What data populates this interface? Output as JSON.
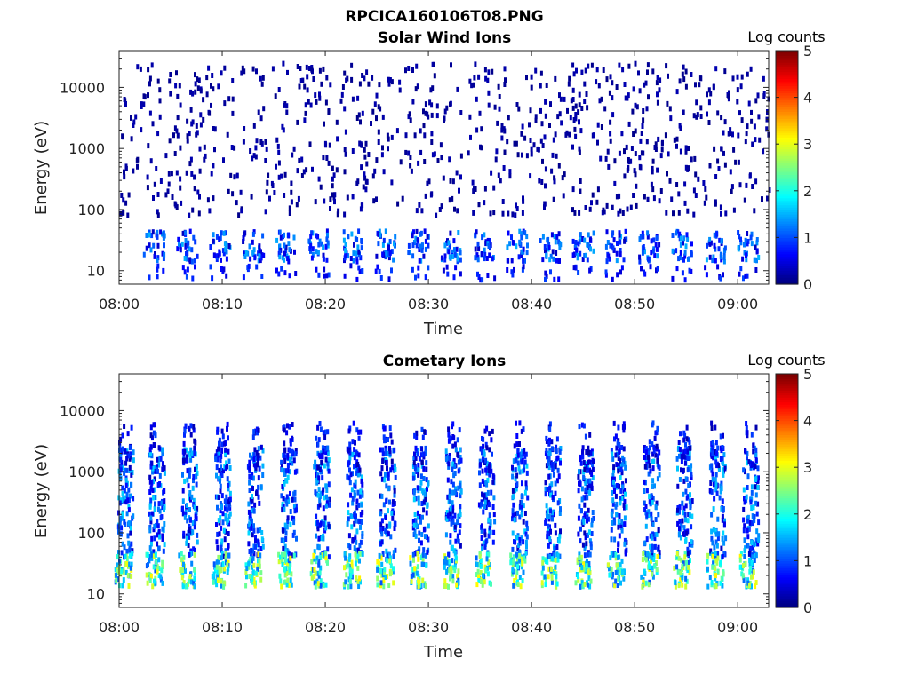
{
  "figure_title": "RPCICA160106T08.PNG",
  "chart_data": [
    {
      "type": "heatmap",
      "title": "Solar Wind Ions",
      "xlabel": "Time",
      "ylabel": "Energy (eV)",
      "x_ticks": [
        "08:00",
        "08:10",
        "08:20",
        "08:30",
        "08:40",
        "08:50",
        "09:00"
      ],
      "y_ticks": [
        "10",
        "100",
        "1000",
        "10000"
      ],
      "y_scale": "log",
      "ylim": [
        6,
        40000
      ],
      "colorbar": {
        "label": "Log counts",
        "range": [
          0,
          5
        ],
        "ticks": [
          "0",
          "1",
          "2",
          "3",
          "4",
          "5"
        ]
      },
      "pattern": "sparse",
      "cold_bursts_minutes": [
        3.3,
        6.5,
        9.7,
        12.9,
        16.1,
        19.3,
        22.5,
        25.7,
        28.9,
        32.1,
        35.3,
        38.5,
        41.7,
        44.9,
        48.1,
        51.3,
        54.5,
        57.7,
        60.9
      ],
      "colormap": "jet"
    },
    {
      "type": "heatmap",
      "title": "Cometary Ions",
      "xlabel": "Time",
      "ylabel": "Energy (eV)",
      "x_ticks": [
        "08:00",
        "08:10",
        "08:20",
        "08:30",
        "08:40",
        "08:50",
        "09:00"
      ],
      "y_ticks": [
        "10",
        "100",
        "1000",
        "10000"
      ],
      "y_scale": "log",
      "ylim": [
        6,
        40000
      ],
      "colorbar": {
        "label": "Log counts",
        "range": [
          0,
          5
        ],
        "ticks": [
          "0",
          "1",
          "2",
          "3",
          "4",
          "5"
        ]
      },
      "pattern": "bursts",
      "cold_bursts_minutes": [
        0.3,
        3.3,
        6.5,
        9.7,
        12.9,
        16.1,
        19.3,
        22.5,
        25.7,
        28.9,
        32.1,
        35.3,
        38.5,
        41.7,
        44.9,
        48.1,
        51.3,
        54.5,
        57.7,
        60.9
      ],
      "colormap": "jet"
    }
  ]
}
